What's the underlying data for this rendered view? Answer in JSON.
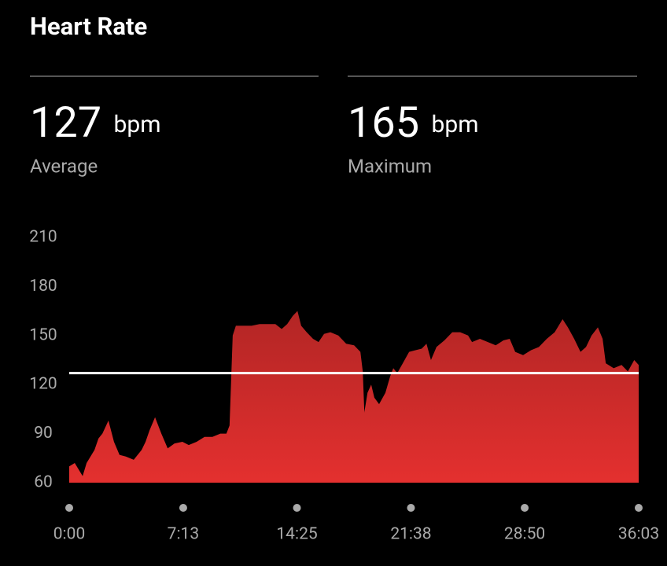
{
  "title": "Heart Rate",
  "stats": [
    {
      "value": 127,
      "unit": "bpm",
      "label": "Average"
    },
    {
      "value": 165,
      "unit": "bpm",
      "label": "Maximum"
    }
  ],
  "chart_data": {
    "type": "area",
    "color": "#e4302f",
    "x": [
      0,
      21,
      51,
      66,
      96,
      111,
      126,
      149,
      170,
      191,
      215,
      245,
      275,
      290,
      305,
      326,
      350,
      374,
      400,
      430,
      454,
      484,
      514,
      544,
      574,
      597,
      609,
      621,
      633,
      663,
      693,
      723,
      753,
      783,
      807,
      828,
      849,
      867,
      881,
      902,
      926,
      947,
      968,
      992,
      1022,
      1052,
      1082,
      1106,
      1115,
      1121,
      1133,
      1147,
      1159,
      1177,
      1201,
      1219,
      1231,
      1246,
      1267,
      1291,
      1315,
      1339,
      1357,
      1374,
      1395,
      1425,
      1455,
      1485,
      1515,
      1530,
      1560,
      1590,
      1620,
      1649,
      1673,
      1694,
      1724,
      1754,
      1784,
      1814,
      1844,
      1874,
      1894,
      1918,
      1942,
      1963,
      1984,
      2008,
      2026,
      2038,
      2068,
      2098,
      2122,
      2146,
      2163
    ],
    "values": [
      70,
      72,
      64,
      72,
      80,
      87,
      90,
      98,
      85,
      77,
      76,
      74,
      80,
      85,
      92,
      100,
      90,
      81,
      84,
      85,
      83,
      85,
      88,
      88,
      90,
      90,
      95,
      150,
      156,
      156,
      156,
      157,
      157,
      157,
      154,
      157,
      162,
      165,
      156,
      152,
      148,
      146,
      151,
      152,
      150,
      145,
      144,
      140,
      128,
      103,
      115,
      120,
      112,
      108,
      115,
      125,
      130,
      127,
      133,
      140,
      141,
      142,
      145,
      135,
      143,
      147,
      152,
      152,
      150,
      146,
      148,
      146,
      144,
      147,
      148,
      140,
      138,
      141,
      143,
      148,
      152,
      160,
      155,
      148,
      140,
      143,
      150,
      155,
      148,
      133,
      130,
      132,
      128,
      135,
      132
    ],
    "xlim": [
      0,
      2163
    ],
    "xticks": [
      {
        "value": 0,
        "label": "0:00"
      },
      {
        "value": 433,
        "label": "7:13"
      },
      {
        "value": 865,
        "label": "14:25"
      },
      {
        "value": 1298,
        "label": "21:38"
      },
      {
        "value": 1730,
        "label": "28:50"
      },
      {
        "value": 2163,
        "label": "36:03"
      }
    ],
    "ylim": [
      60,
      210
    ],
    "yticks": [
      60,
      90,
      120,
      150,
      180,
      210
    ]
  }
}
